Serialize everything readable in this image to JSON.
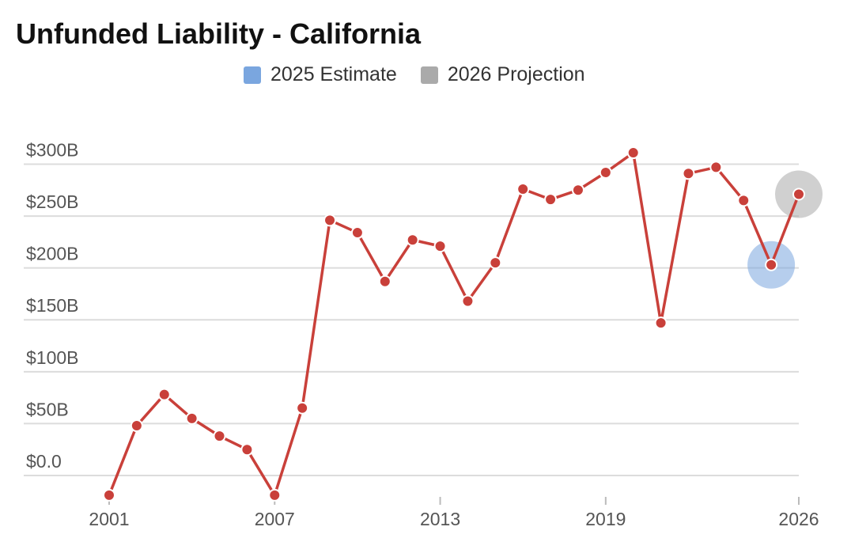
{
  "chart_data": {
    "type": "line",
    "title": "Unfunded Liability - California",
    "xlabel": "",
    "ylabel": "",
    "x_tick_labels": [
      "2001",
      "2007",
      "2013",
      "2019",
      "2026"
    ],
    "y_tick_labels": [
      "$0.0",
      "$50B",
      "$100B",
      "$150B",
      "$200B",
      "$250B",
      "$300B"
    ],
    "y_ticks": [
      0,
      50,
      100,
      150,
      200,
      250,
      300
    ],
    "ylim": [
      -27,
      335
    ],
    "xlim": [
      2001,
      2026
    ],
    "grid": true,
    "legend_position": "top-center",
    "series": [
      {
        "name": "Unfunded Liability",
        "color": "#c9403a",
        "x": [
          2001,
          2002,
          2003,
          2004,
          2005,
          2006,
          2007,
          2008,
          2009,
          2010,
          2011,
          2012,
          2013,
          2014,
          2015,
          2016,
          2017,
          2018,
          2019,
          2020,
          2021,
          2022,
          2023,
          2024,
          2025,
          2026
        ],
        "values": [
          -19,
          48,
          78,
          55,
          38,
          25,
          -19,
          65,
          246,
          234,
          187,
          227,
          221,
          168,
          205,
          276,
          266,
          275,
          292,
          311,
          147,
          291,
          297,
          265,
          203,
          271
        ]
      }
    ],
    "highlights": [
      {
        "label": "2025 Estimate",
        "x": 2025,
        "value": 203,
        "color": "#7aa6df"
      },
      {
        "label": "2026 Projection",
        "x": 2026,
        "value": 271,
        "color": "#aaaaaa"
      }
    ]
  }
}
